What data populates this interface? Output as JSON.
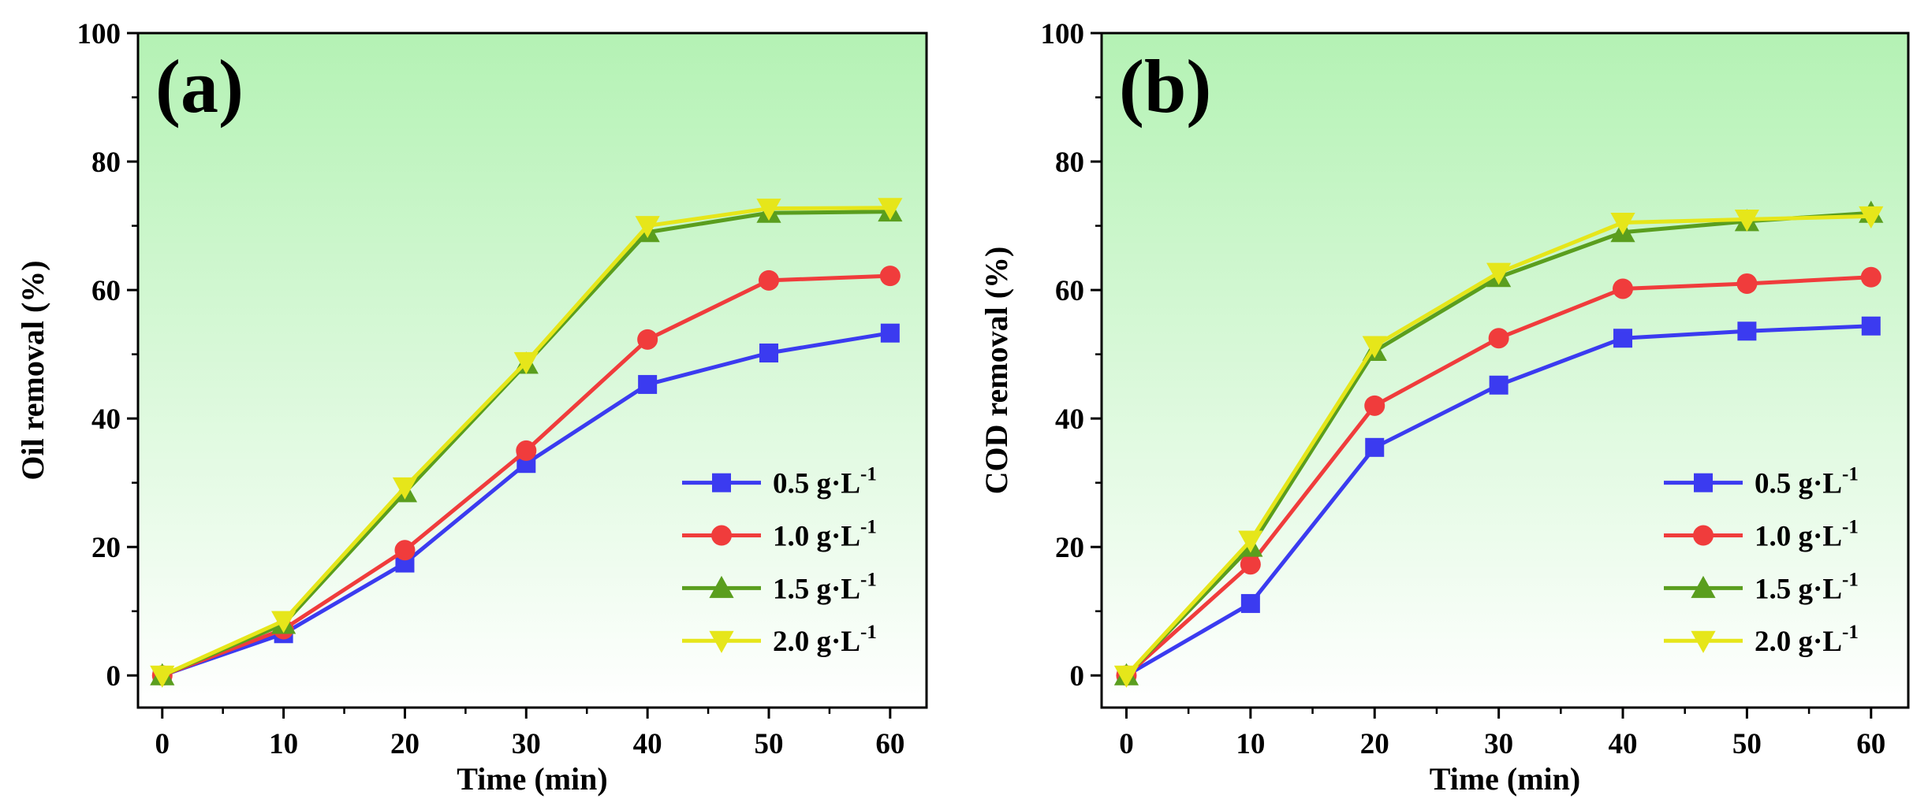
{
  "chart_data": [
    {
      "type": "line",
      "panel_label": "(a)",
      "xlabel": "Time (min)",
      "ylabel": "Oil removal (%)",
      "xlim": [
        -2,
        63
      ],
      "ylim": [
        -5,
        100
      ],
      "x_ticks": [
        0,
        10,
        20,
        30,
        40,
        50,
        60
      ],
      "y_ticks": [
        0,
        20,
        40,
        60,
        80,
        100
      ],
      "grid": false,
      "legend_position": "bottom-right",
      "background": "green-to-white vertical gradient",
      "x": [
        0,
        10,
        20,
        30,
        40,
        50,
        60
      ],
      "series": [
        {
          "name": "0.5 g·L",
          "sup": "-1",
          "color": "#3b3bf0",
          "marker": "square",
          "values": [
            0,
            6.5,
            17.5,
            33,
            45.3,
            50.2,
            53.3
          ]
        },
        {
          "name": "1.0 g·L",
          "sup": "-1",
          "color": "#f03c3c",
          "marker": "circle",
          "values": [
            0,
            7.2,
            19.5,
            35,
            52.3,
            61.5,
            62.2
          ]
        },
        {
          "name": "1.5 g·L",
          "sup": "-1",
          "color": "#5a9e1e",
          "marker": "triangle-up",
          "values": [
            0,
            8,
            28.5,
            48.5,
            69,
            72,
            72.2
          ]
        },
        {
          "name": "2.0 g·L",
          "sup": "-1",
          "color": "#e6e61a",
          "marker": "triangle-down",
          "values": [
            0,
            8.5,
            29.3,
            48.8,
            70,
            72.7,
            72.8
          ]
        }
      ]
    },
    {
      "type": "line",
      "panel_label": "(b)",
      "xlabel": "Time (min)",
      "ylabel": "COD removal (%)",
      "xlim": [
        -2,
        63
      ],
      "ylim": [
        -5,
        100
      ],
      "x_ticks": [
        0,
        10,
        20,
        30,
        40,
        50,
        60
      ],
      "y_ticks": [
        0,
        20,
        40,
        60,
        80,
        100
      ],
      "grid": false,
      "legend_position": "bottom-right",
      "background": "green-to-white vertical gradient",
      "x": [
        0,
        10,
        20,
        30,
        40,
        50,
        60
      ],
      "series": [
        {
          "name": "0.5 g·L",
          "sup": "-1",
          "color": "#3b3bf0",
          "marker": "square",
          "values": [
            0,
            11.2,
            35.5,
            45.2,
            52.5,
            53.6,
            54.4
          ]
        },
        {
          "name": "1.0 g·L",
          "sup": "-1",
          "color": "#f03c3c",
          "marker": "circle",
          "values": [
            0,
            17.3,
            42,
            52.5,
            60.2,
            61,
            62
          ]
        },
        {
          "name": "1.5 g·L",
          "sup": "-1",
          "color": "#5a9e1e",
          "marker": "triangle-up",
          "values": [
            0,
            20,
            50.5,
            62,
            69,
            70.7,
            72
          ]
        },
        {
          "name": "2.0 g·L",
          "sup": "-1",
          "color": "#e6e61a",
          "marker": "triangle-down",
          "values": [
            0,
            21,
            51.3,
            62.7,
            70.5,
            71,
            71.5
          ]
        }
      ]
    }
  ]
}
